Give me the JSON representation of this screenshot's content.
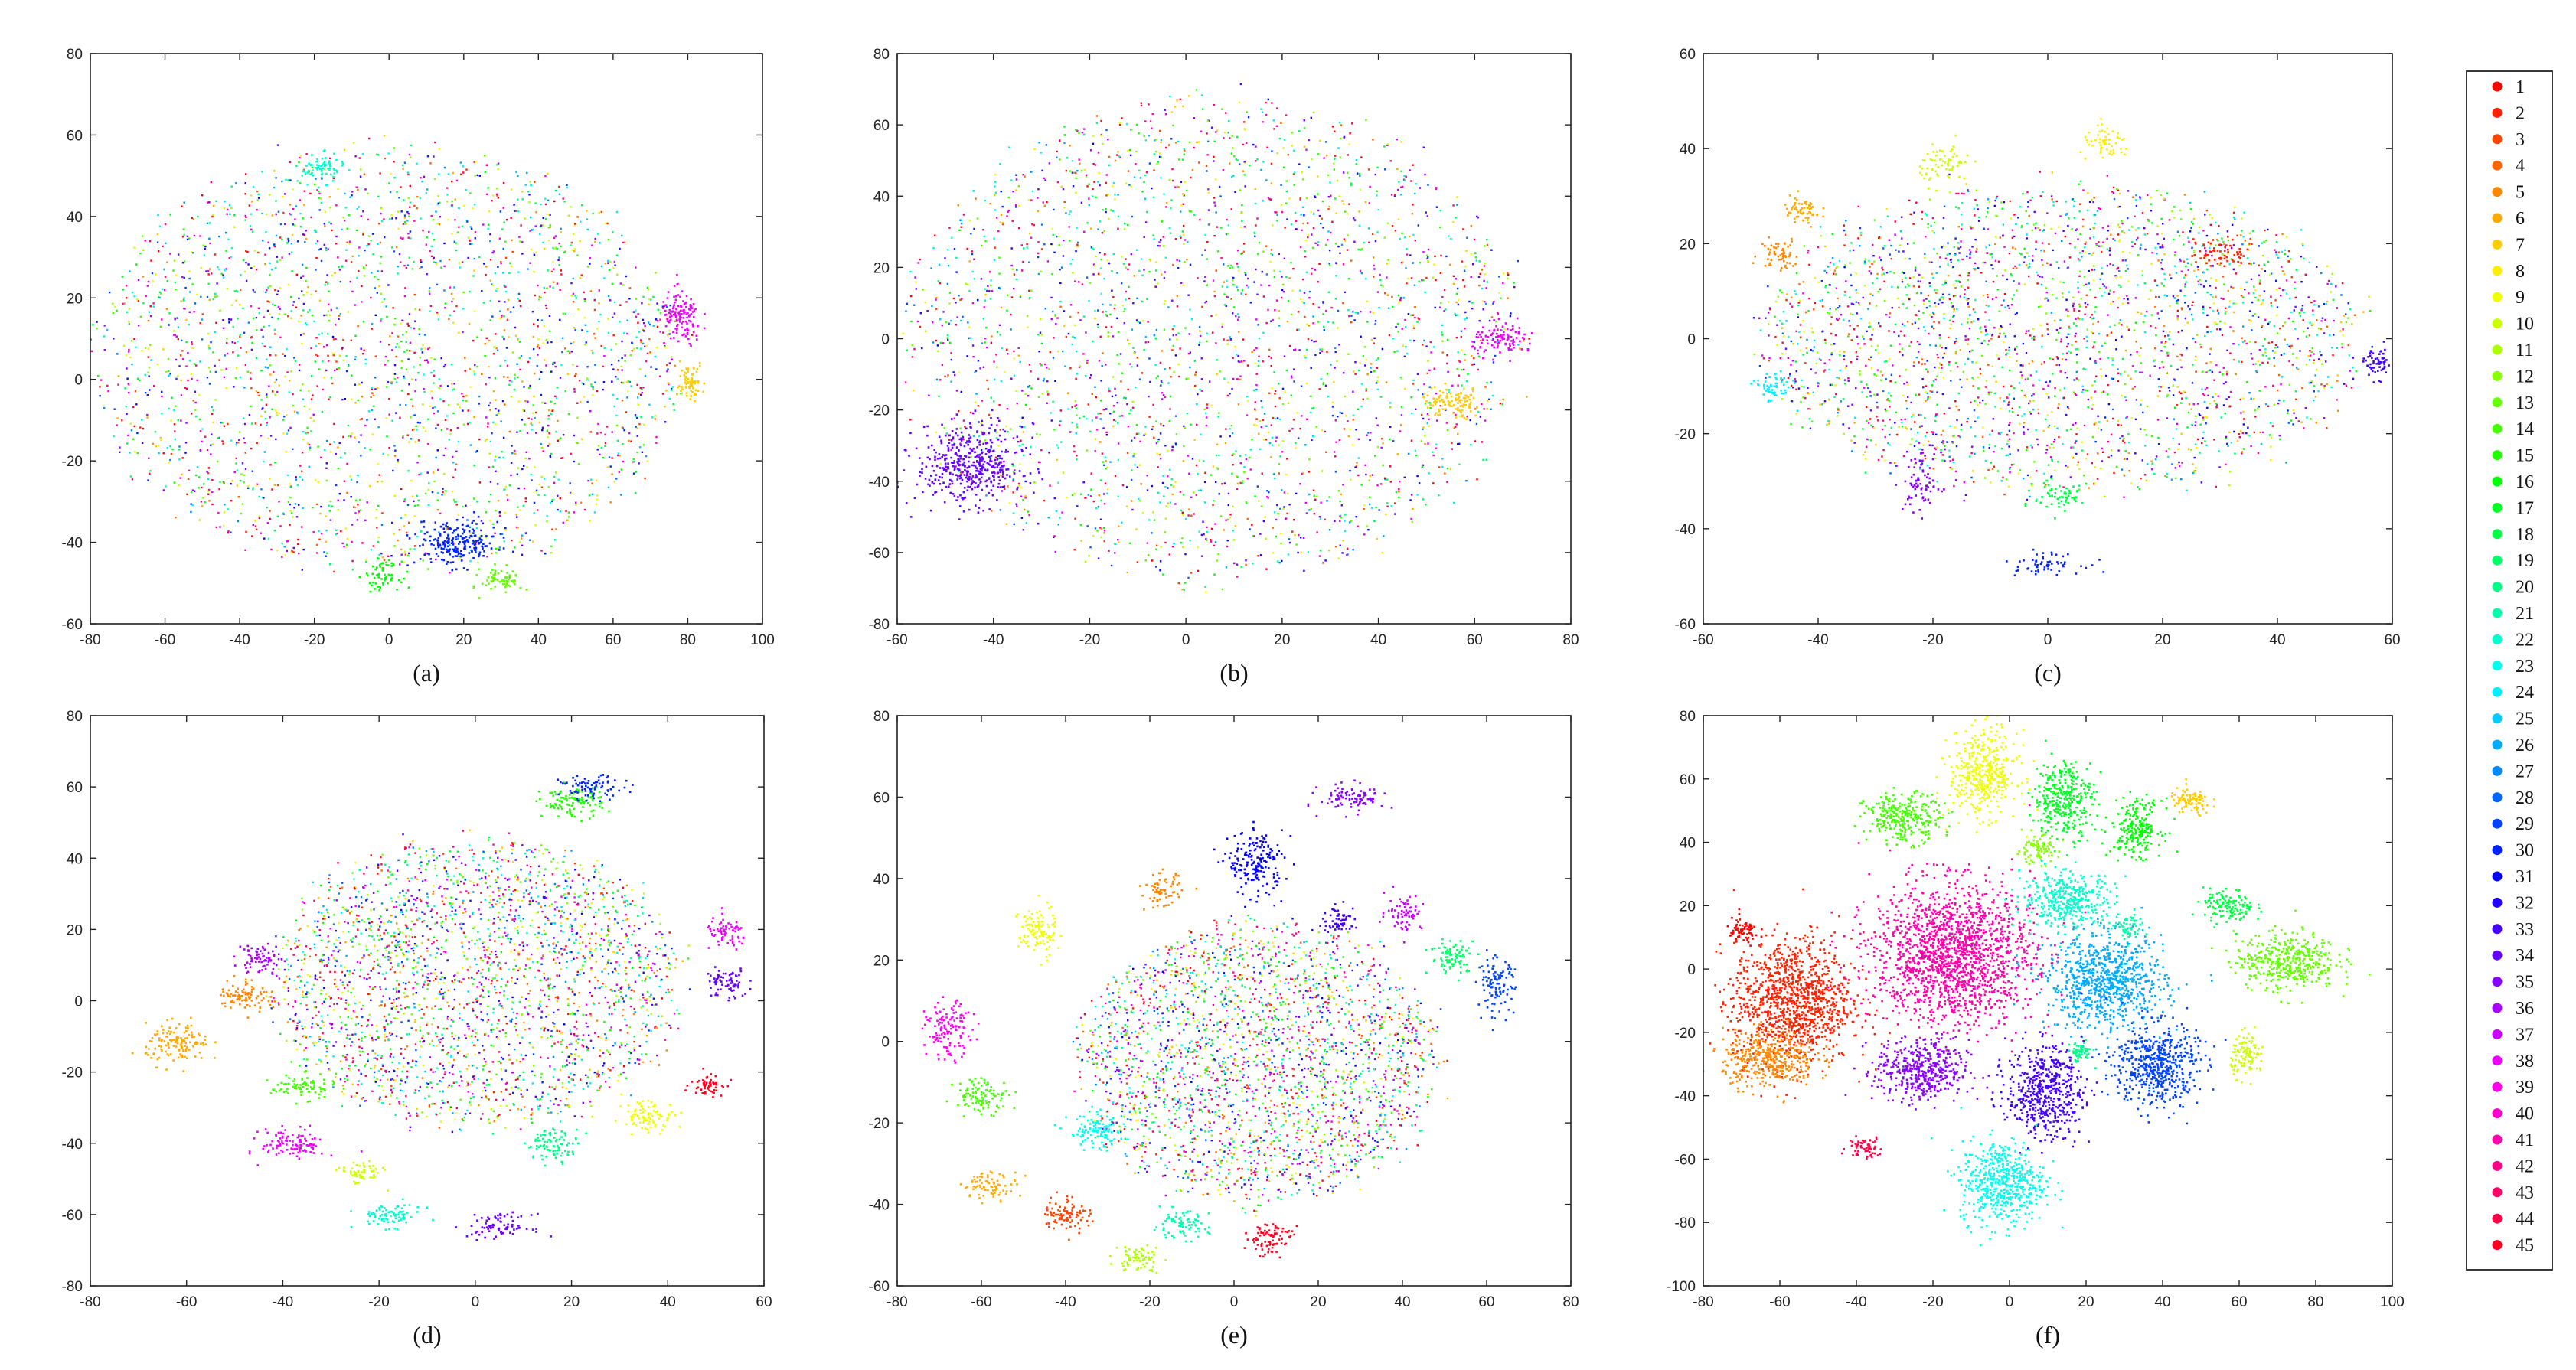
{
  "figure": {
    "legend": {
      "labels": [
        "1",
        "2",
        "3",
        "4",
        "5",
        "6",
        "7",
        "8",
        "9",
        "10",
        "11",
        "12",
        "13",
        "14",
        "15",
        "16",
        "17",
        "18",
        "19",
        "20",
        "21",
        "22",
        "23",
        "24",
        "25",
        "26",
        "27",
        "28",
        "29",
        "30",
        "31",
        "32",
        "33",
        "34",
        "35",
        "36",
        "37",
        "38",
        "39",
        "40",
        "41",
        "42",
        "43",
        "44",
        "45"
      ],
      "placement": "right"
    },
    "colormap": "hsv (red → yellow → green → cyan → blue → magenta → red), 45 classes"
  },
  "chart_data": [
    {
      "type": "scatter",
      "panel": "a",
      "caption": "(a)",
      "xlim": [
        -80,
        100
      ],
      "ylim": [
        -60,
        80
      ],
      "xticks": [
        -80,
        -60,
        -40,
        -20,
        0,
        20,
        40,
        60,
        80,
        100
      ],
      "yticks": [
        -60,
        -40,
        -20,
        0,
        20,
        40,
        60,
        80
      ],
      "series": [
        {
          "name": "all classes (mixed)",
          "type": "mixed",
          "cx": 0,
          "cy": 5,
          "w": 78,
          "h": 52
        }
      ],
      "clusters": [
        {
          "class": 38,
          "cx": 78,
          "cy": 15,
          "rx": 5,
          "ry": 6
        },
        {
          "class": 7,
          "cx": 80,
          "cy": 0,
          "rx": 4,
          "ry": 4
        },
        {
          "class": 16,
          "cx": -2,
          "cy": -48,
          "rx": 4,
          "ry": 3
        },
        {
          "class": 30,
          "cx": 18,
          "cy": -40,
          "rx": 10,
          "ry": 5
        },
        {
          "class": 13,
          "cx": 30,
          "cy": -49,
          "rx": 5,
          "ry": 3
        },
        {
          "class": 22,
          "cx": -18,
          "cy": 52,
          "rx": 5,
          "ry": 3
        }
      ]
    },
    {
      "type": "scatter",
      "panel": "b",
      "caption": "(b)",
      "xlim": [
        -60,
        80
      ],
      "ylim": [
        -80,
        80
      ],
      "xticks": [
        -60,
        -40,
        -20,
        0,
        20,
        40,
        60,
        80
      ],
      "yticks": [
        -80,
        -60,
        -40,
        -20,
        0,
        20,
        40,
        60,
        80
      ],
      "series": [
        {
          "name": "all classes (mixed)",
          "type": "mixed",
          "cx": 5,
          "cy": 0,
          "w": 63,
          "h": 68
        }
      ],
      "clusters": [
        {
          "class": 38,
          "cx": 66,
          "cy": 0,
          "rx": 6,
          "ry": 4
        },
        {
          "class": 7,
          "cx": 55,
          "cy": -18,
          "rx": 6,
          "ry": 4
        },
        {
          "class": 34,
          "cx": -45,
          "cy": -35,
          "rx": 10,
          "ry": 10
        }
      ]
    },
    {
      "type": "scatter",
      "panel": "c",
      "caption": "(c)",
      "xlim": [
        -60,
        60
      ],
      "ylim": [
        -60,
        60
      ],
      "xticks": [
        -60,
        -40,
        -20,
        0,
        20,
        40,
        60
      ],
      "yticks": [
        -60,
        -40,
        -20,
        0,
        20,
        40,
        60
      ],
      "series": [
        {
          "name": "all classes (mixed)",
          "type": "mixed",
          "cx": 2,
          "cy": 0,
          "w": 52,
          "h": 32
        }
      ],
      "clusters": [
        {
          "class": 10,
          "cx": -18,
          "cy": 37,
          "rx": 4,
          "ry": 4
        },
        {
          "class": 8,
          "cx": 10,
          "cy": 41,
          "rx": 4,
          "ry": 3
        },
        {
          "class": 6,
          "cx": -43,
          "cy": 27,
          "rx": 3,
          "ry": 3
        },
        {
          "class": 5,
          "cx": -47,
          "cy": 18,
          "rx": 3,
          "ry": 3
        },
        {
          "class": 30,
          "cx": -1,
          "cy": -47,
          "rx": 6,
          "ry": 2
        },
        {
          "class": 35,
          "cx": -22,
          "cy": -30,
          "rx": 3,
          "ry": 6
        },
        {
          "class": 33,
          "cx": 57,
          "cy": -5,
          "rx": 3,
          "ry": 3
        },
        {
          "class": 24,
          "cx": -48,
          "cy": -10,
          "rx": 3,
          "ry": 3
        },
        {
          "class": 2,
          "cx": 30,
          "cy": 18,
          "rx": 5,
          "ry": 3
        },
        {
          "class": 18,
          "cx": 2,
          "cy": -33,
          "rx": 4,
          "ry": 3
        }
      ]
    },
    {
      "type": "scatter",
      "panel": "d",
      "caption": "(d)",
      "xlim": [
        -80,
        60
      ],
      "ylim": [
        -80,
        80
      ],
      "xticks": [
        -80,
        -60,
        -40,
        -20,
        0,
        20,
        40,
        60
      ],
      "yticks": [
        -80,
        -60,
        -40,
        -20,
        0,
        20,
        40,
        60,
        80
      ],
      "series": [
        {
          "name": "all classes (mixed)",
          "type": "mixed",
          "cx": 0,
          "cy": 5,
          "w": 42,
          "h": 40
        }
      ],
      "clusters": [
        {
          "class": 6,
          "cx": -62,
          "cy": -12,
          "rx": 6,
          "ry": 5
        },
        {
          "class": 38,
          "cx": 52,
          "cy": 19,
          "rx": 4,
          "ry": 4
        },
        {
          "class": 34,
          "cx": 52,
          "cy": 5,
          "rx": 4,
          "ry": 4
        },
        {
          "class": 45,
          "cx": 48,
          "cy": -23,
          "rx": 3,
          "ry": 3
        },
        {
          "class": 34,
          "cx": 5,
          "cy": -63,
          "rx": 6,
          "ry": 3
        },
        {
          "class": 22,
          "cx": -18,
          "cy": -60,
          "rx": 6,
          "ry": 3
        },
        {
          "class": 10,
          "cx": -24,
          "cy": -48,
          "rx": 4,
          "ry": 3
        },
        {
          "class": 38,
          "cx": -38,
          "cy": -40,
          "rx": 6,
          "ry": 4
        },
        {
          "class": 14,
          "cx": -36,
          "cy": -24,
          "rx": 6,
          "ry": 3
        },
        {
          "class": 15,
          "cx": 20,
          "cy": 56,
          "rx": 6,
          "ry": 4
        },
        {
          "class": 30,
          "cx": 24,
          "cy": 60,
          "rx": 6,
          "ry": 3
        },
        {
          "class": 9,
          "cx": 36,
          "cy": -32,
          "rx": 5,
          "ry": 4
        },
        {
          "class": 20,
          "cx": 16,
          "cy": -40,
          "rx": 5,
          "ry": 4
        },
        {
          "class": 5,
          "cx": -48,
          "cy": 2,
          "rx": 5,
          "ry": 4
        },
        {
          "class": 36,
          "cx": -45,
          "cy": 12,
          "rx": 4,
          "ry": 4
        }
      ]
    },
    {
      "type": "scatter",
      "panel": "e",
      "caption": "(e)",
      "xlim": [
        -80,
        80
      ],
      "ylim": [
        -60,
        80
      ],
      "xticks": [
        -80,
        -60,
        -40,
        -20,
        0,
        20,
        40,
        60,
        80
      ],
      "yticks": [
        -60,
        -40,
        -20,
        0,
        20,
        40,
        60,
        80
      ],
      "series": [
        {
          "name": "all classes (mixed)",
          "type": "mixed",
          "cx": 5,
          "cy": -5,
          "w": 42,
          "h": 34
        }
      ],
      "clusters": [
        {
          "class": 35,
          "cx": 28,
          "cy": 60,
          "rx": 7,
          "ry": 3
        },
        {
          "class": 9,
          "cx": -47,
          "cy": 27,
          "rx": 4,
          "ry": 6
        },
        {
          "class": 39,
          "cx": -68,
          "cy": 3,
          "rx": 5,
          "ry": 6
        },
        {
          "class": 14,
          "cx": -60,
          "cy": -13,
          "rx": 6,
          "ry": 4
        },
        {
          "class": 6,
          "cx": -58,
          "cy": -35,
          "rx": 6,
          "ry": 3
        },
        {
          "class": 3,
          "cx": -40,
          "cy": -42,
          "rx": 5,
          "ry": 4
        },
        {
          "class": 11,
          "cx": -23,
          "cy": -53,
          "rx": 5,
          "ry": 3
        },
        {
          "class": 45,
          "cx": 8,
          "cy": -48,
          "rx": 5,
          "ry": 4
        },
        {
          "class": 21,
          "cx": -13,
          "cy": -45,
          "rx": 6,
          "ry": 3
        },
        {
          "class": 29,
          "cx": 62,
          "cy": 14,
          "rx": 4,
          "ry": 6
        },
        {
          "class": 19,
          "cx": 52,
          "cy": 21,
          "rx": 5,
          "ry": 4
        },
        {
          "class": 37,
          "cx": 40,
          "cy": 32,
          "rx": 4,
          "ry": 4
        },
        {
          "class": 33,
          "cx": 25,
          "cy": 30,
          "rx": 4,
          "ry": 3
        },
        {
          "class": 31,
          "cx": 5,
          "cy": 44,
          "rx": 6,
          "ry": 7
        },
        {
          "class": 5,
          "cx": -17,
          "cy": 37,
          "rx": 4,
          "ry": 4
        },
        {
          "class": 23,
          "cx": -33,
          "cy": -22,
          "rx": 6,
          "ry": 4
        }
      ]
    },
    {
      "type": "scatter",
      "panel": "f",
      "caption": "(f)",
      "xlim": [
        -80,
        100
      ],
      "ylim": [
        -100,
        80
      ],
      "xticks": [
        -80,
        -60,
        -40,
        -20,
        0,
        20,
        40,
        60,
        80,
        100
      ],
      "yticks": [
        -100,
        -80,
        -60,
        -40,
        -20,
        0,
        20,
        40,
        60,
        80
      ],
      "series": [],
      "clusters": [
        {
          "class": 41,
          "cx": -15,
          "cy": 5,
          "rx": 19,
          "ry": 20
        },
        {
          "class": 2,
          "cx": -57,
          "cy": -10,
          "rx": 14,
          "ry": 18
        },
        {
          "class": 5,
          "cx": -63,
          "cy": -28,
          "rx": 11,
          "ry": 8
        },
        {
          "class": 1,
          "cx": -70,
          "cy": 12,
          "rx": 4,
          "ry": 4
        },
        {
          "class": 44,
          "cx": -38,
          "cy": -56,
          "rx": 4,
          "ry": 3
        },
        {
          "class": 9,
          "cx": -7,
          "cy": 62,
          "rx": 8,
          "ry": 12
        },
        {
          "class": 14,
          "cx": -28,
          "cy": 48,
          "rx": 9,
          "ry": 7
        },
        {
          "class": 17,
          "cx": 14,
          "cy": 54,
          "rx": 7,
          "ry": 11
        },
        {
          "class": 12,
          "cx": 7,
          "cy": 38,
          "rx": 5,
          "ry": 4
        },
        {
          "class": 22,
          "cx": 15,
          "cy": 22,
          "rx": 11,
          "ry": 8
        },
        {
          "class": 26,
          "cx": 25,
          "cy": -4,
          "rx": 14,
          "ry": 13
        },
        {
          "class": 29,
          "cx": 38,
          "cy": -30,
          "rx": 10,
          "ry": 12
        },
        {
          "class": 33,
          "cx": 9,
          "cy": -38,
          "rx": 9,
          "ry": 13
        },
        {
          "class": 35,
          "cx": -23,
          "cy": -32,
          "rx": 11,
          "ry": 9
        },
        {
          "class": 23,
          "cx": -2,
          "cy": -67,
          "rx": 10,
          "ry": 12
        },
        {
          "class": 13,
          "cx": 72,
          "cy": 3,
          "rx": 12,
          "ry": 8
        },
        {
          "class": 18,
          "cx": 57,
          "cy": 20,
          "rx": 6,
          "ry": 5
        },
        {
          "class": 10,
          "cx": 62,
          "cy": -27,
          "rx": 4,
          "ry": 6
        },
        {
          "class": 7,
          "cx": 47,
          "cy": 53,
          "rx": 5,
          "ry": 4
        },
        {
          "class": 16,
          "cx": 33,
          "cy": 45,
          "rx": 6,
          "ry": 8
        },
        {
          "class": 21,
          "cx": 31,
          "cy": 13,
          "rx": 3,
          "ry": 4
        },
        {
          "class": 20,
          "cx": 18,
          "cy": -26,
          "rx": 3,
          "ry": 3
        }
      ]
    }
  ]
}
